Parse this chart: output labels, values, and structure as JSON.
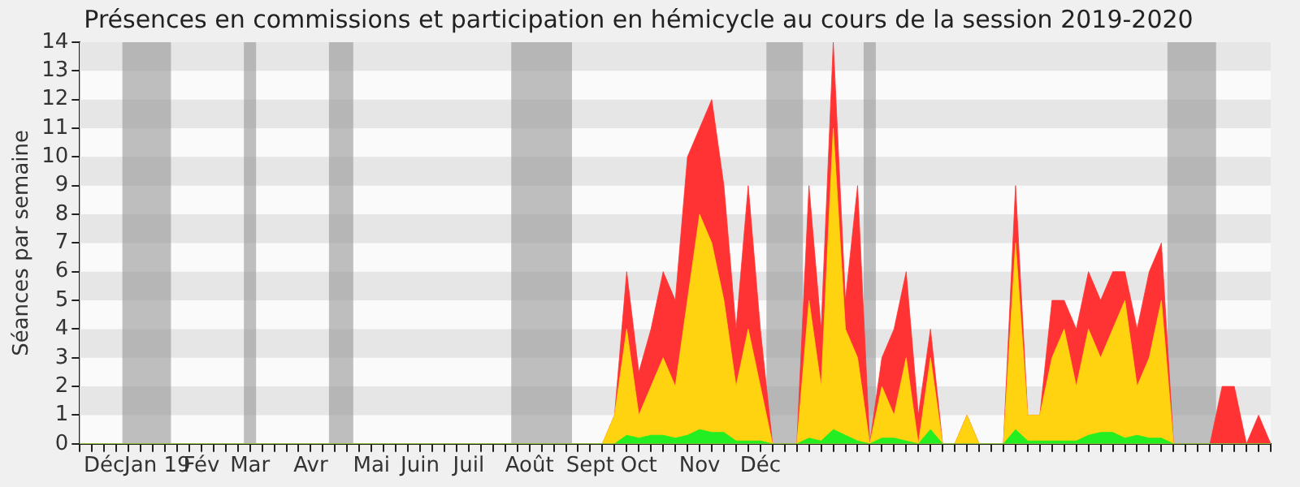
{
  "chart_data": {
    "type": "area",
    "title": "Présences en commissions et participation en hémicycle au cours de la session 2019-2020",
    "ylabel": "Séances par semaine",
    "categories": [
      null,
      null,
      "Déc",
      null,
      null,
      "Jan",
      null,
      null,
      "19",
      null,
      "Fév",
      null,
      null,
      null,
      "Mar",
      null,
      null,
      null,
      null,
      "Avr",
      null,
      null,
      null,
      null,
      "Mai",
      null,
      null,
      null,
      "Juin",
      null,
      null,
      null,
      "Juil",
      null,
      null,
      null,
      null,
      "Août",
      null,
      null,
      null,
      null,
      "Sept",
      null,
      null,
      null,
      "Oct",
      null,
      null,
      null,
      null,
      "Nov",
      null,
      null,
      null,
      null,
      "Déc",
      null,
      null,
      null,
      null,
      null,
      null,
      null,
      null,
      null,
      null,
      null,
      null,
      null,
      null,
      null,
      null,
      null,
      null,
      null,
      null,
      null,
      null,
      null,
      null,
      null,
      null,
      null,
      null,
      null,
      null,
      null,
      null,
      null,
      null,
      null,
      null,
      null,
      null,
      null,
      null,
      null,
      null
    ],
    "series": [
      {
        "color": "#ff3333",
        "values": [
          0,
          0,
          0,
          0,
          0,
          0,
          0,
          0,
          0,
          0,
          0,
          0,
          0,
          0,
          0,
          0,
          0,
          0,
          0,
          0,
          0,
          0,
          0,
          0,
          0,
          0,
          0,
          0,
          0,
          0,
          0,
          0,
          0,
          0,
          0,
          0,
          0,
          0,
          0,
          0,
          0,
          0,
          0,
          0,
          1,
          6,
          2.5,
          4,
          6,
          5,
          10,
          11,
          12,
          9,
          4,
          9,
          4,
          0,
          0,
          0,
          9,
          4,
          14,
          5,
          9,
          0,
          3,
          4,
          6,
          1,
          4,
          0,
          0,
          1,
          0,
          0,
          0,
          9,
          1,
          1,
          5,
          5,
          4,
          6,
          5,
          6,
          6,
          4,
          6,
          7,
          0,
          0,
          0,
          0,
          2,
          2,
          0,
          1,
          0
        ]
      },
      {
        "color": "#ffd30f",
        "values": [
          0,
          0,
          0,
          0,
          0,
          0,
          0,
          0,
          0,
          0,
          0,
          0,
          0,
          0,
          0,
          0,
          0,
          0,
          0,
          0,
          0,
          0,
          0,
          0,
          0,
          0,
          0,
          0,
          0,
          0,
          0,
          0,
          0,
          0,
          0,
          0,
          0,
          0,
          0,
          0,
          0,
          0,
          0,
          0,
          1,
          4,
          1,
          2,
          3,
          2,
          5,
          8,
          7,
          5,
          2,
          4,
          2,
          0,
          0,
          0,
          5,
          2,
          11,
          4,
          3,
          0,
          2,
          1,
          3,
          0,
          3,
          0,
          0,
          1,
          0,
          0,
          0,
          7,
          1,
          1,
          3,
          4,
          2,
          4,
          3,
          4,
          5,
          2,
          3,
          5,
          0,
          0,
          0,
          0,
          0,
          0,
          0,
          0,
          0
        ]
      },
      {
        "color": "#22ee22",
        "values": [
          0,
          0,
          0,
          0,
          0,
          0,
          0,
          0,
          0,
          0,
          0,
          0,
          0,
          0,
          0,
          0,
          0,
          0,
          0,
          0,
          0,
          0,
          0,
          0,
          0,
          0,
          0,
          0,
          0,
          0,
          0,
          0,
          0,
          0,
          0,
          0,
          0,
          0,
          0,
          0,
          0,
          0,
          0,
          0,
          0,
          0.3,
          0.2,
          0.3,
          0.3,
          0.2,
          0.3,
          0.5,
          0.4,
          0.4,
          0.1,
          0.1,
          0.1,
          0,
          0,
          0,
          0.2,
          0.1,
          0.5,
          0.3,
          0.1,
          0,
          0.2,
          0.2,
          0.1,
          0,
          0.5,
          0,
          0,
          0,
          0,
          0,
          0,
          0.5,
          0.1,
          0.1,
          0.1,
          0.1,
          0.1,
          0.3,
          0.4,
          0.4,
          0.2,
          0.3,
          0.2,
          0.2,
          0,
          0,
          0,
          0,
          0,
          0,
          0,
          0,
          0
        ]
      }
    ],
    "ylim": [
      0,
      14
    ],
    "yticks": [
      0,
      1,
      2,
      3,
      4,
      5,
      6,
      7,
      8,
      9,
      10,
      11,
      12,
      13,
      14
    ],
    "legend": false,
    "marker": "none"
  }
}
